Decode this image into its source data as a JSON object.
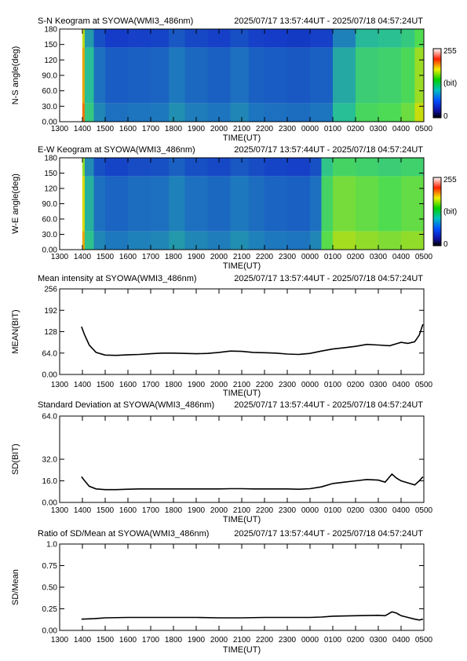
{
  "time_ticks": [
    "1300",
    "1400",
    "1500",
    "1600",
    "1700",
    "1800",
    "1900",
    "2000",
    "2100",
    "2200",
    "2300",
    "0000",
    "0100",
    "0200",
    "0300",
    "0400",
    "0500"
  ],
  "colors": {
    "line": "#000000",
    "keogram_base": "#2a6fb0",
    "keogram_bright": "#5ed0a0"
  },
  "chart_data": [
    {
      "type": "heatmap",
      "title": "S-N Keogram at SYOWA(WMI3_486nm)",
      "time_range": "2025/07/17 13:57:44UT - 2025/07/18 04:57:24UT",
      "xlabel": "TIME(UT)",
      "ylabel": "N-S angle(deg)",
      "yticks": [
        "0.00",
        "30.0",
        "60.0",
        "90.0",
        "120",
        "150",
        "180"
      ],
      "ylim": [
        0,
        180
      ],
      "colorbar": {
        "max": "255",
        "unit": "(bit)",
        "min": "0"
      },
      "column_intensity": [
        {
          "t": 13.96,
          "v": 0.9
        },
        {
          "t": 14.1,
          "v": 0.55
        },
        {
          "t": 14.5,
          "v": 0.38
        },
        {
          "t": 15.0,
          "v": 0.33
        },
        {
          "t": 16.0,
          "v": 0.34
        },
        {
          "t": 17.0,
          "v": 0.35
        },
        {
          "t": 17.8,
          "v": 0.4
        },
        {
          "t": 18.5,
          "v": 0.36
        },
        {
          "t": 19.5,
          "v": 0.34
        },
        {
          "t": 20.5,
          "v": 0.38
        },
        {
          "t": 21.3,
          "v": 0.34
        },
        {
          "t": 22.0,
          "v": 0.33
        },
        {
          "t": 23.0,
          "v": 0.32
        },
        {
          "t": 24.0,
          "v": 0.34
        },
        {
          "t": 25.0,
          "v": 0.5
        },
        {
          "t": 26.0,
          "v": 0.62
        },
        {
          "t": 27.0,
          "v": 0.64
        },
        {
          "t": 28.0,
          "v": 0.68
        },
        {
          "t": 28.6,
          "v": 0.78
        },
        {
          "t": 28.96,
          "v": 0.86
        }
      ]
    },
    {
      "type": "heatmap",
      "title": "E-W Keogram at SYOWA(WMI3_486nm)",
      "time_range": "2025/07/17 13:57:44UT - 2025/07/18 04:57:24UT",
      "xlabel": "TIME(UT)",
      "ylabel": "W-E angle(deg)",
      "yticks": [
        "0.00",
        "30.0",
        "60.0",
        "90.0",
        "120",
        "150",
        "180"
      ],
      "ylim": [
        0,
        180
      ],
      "colorbar": {
        "max": "255",
        "unit": "(bit)",
        "min": "0"
      },
      "column_intensity": [
        {
          "t": 13.96,
          "v": 0.85
        },
        {
          "t": 14.1,
          "v": 0.52
        },
        {
          "t": 14.5,
          "v": 0.38
        },
        {
          "t": 15.0,
          "v": 0.35
        },
        {
          "t": 16.0,
          "v": 0.37
        },
        {
          "t": 17.0,
          "v": 0.38
        },
        {
          "t": 17.8,
          "v": 0.42
        },
        {
          "t": 18.5,
          "v": 0.38
        },
        {
          "t": 19.5,
          "v": 0.36
        },
        {
          "t": 20.5,
          "v": 0.4
        },
        {
          "t": 21.3,
          "v": 0.37
        },
        {
          "t": 22.0,
          "v": 0.35
        },
        {
          "t": 23.0,
          "v": 0.34
        },
        {
          "t": 24.0,
          "v": 0.38
        },
        {
          "t": 24.5,
          "v": 0.66
        },
        {
          "t": 25.0,
          "v": 0.74
        },
        {
          "t": 26.0,
          "v": 0.72
        },
        {
          "t": 27.0,
          "v": 0.7
        },
        {
          "t": 28.0,
          "v": 0.72
        },
        {
          "t": 28.96,
          "v": 0.86
        }
      ]
    },
    {
      "type": "line",
      "title": "Mean intensity at SYOWA(WMI3_486nm)",
      "time_range": "2025/07/17 13:57:44UT - 2025/07/18 04:57:24UT",
      "xlabel": "TIME(UT)",
      "ylabel": "MEAN(BIT)",
      "yticks": [
        "0.00",
        "64.0",
        "128",
        "192",
        "256"
      ],
      "ylim": [
        0,
        256
      ],
      "series": [
        {
          "x": [
            13.96,
            14.1,
            14.3,
            14.6,
            15.0,
            15.5,
            16.0,
            16.5,
            17.0,
            17.5,
            18.0,
            18.5,
            19.0,
            19.5,
            20.0,
            20.5,
            21.0,
            21.5,
            22.0,
            22.5,
            23.0,
            23.5,
            24.0,
            24.5,
            25.0,
            25.5,
            26.0,
            26.5,
            27.0,
            27.5,
            28.0,
            28.3,
            28.6,
            28.8,
            28.96
          ],
          "y": [
            143,
            118,
            88,
            66,
            58,
            57,
            59,
            60,
            62,
            64,
            64,
            63,
            62,
            63,
            66,
            70,
            69,
            66,
            65,
            64,
            61,
            60,
            63,
            70,
            76,
            80,
            84,
            90,
            88,
            86,
            96,
            93,
            98,
            118,
            150
          ]
        }
      ]
    },
    {
      "type": "line",
      "title": "Standard Deviation at SYOWA(WMI3_486nm)",
      "time_range": "2025/07/17 13:57:44UT - 2025/07/18 04:57:24UT",
      "xlabel": "TIME(UT)",
      "ylabel": "SD(BIT)",
      "yticks": [
        "0.00",
        "16.0",
        "32.0",
        "64.0"
      ],
      "ylim": [
        0,
        64
      ],
      "series": [
        {
          "x": [
            13.96,
            14.1,
            14.3,
            14.6,
            15.0,
            15.5,
            16.0,
            16.5,
            17.0,
            17.5,
            18.0,
            18.5,
            19.0,
            19.5,
            20.0,
            20.5,
            21.0,
            21.5,
            22.0,
            22.5,
            23.0,
            23.5,
            24.0,
            24.5,
            25.0,
            25.5,
            26.0,
            26.5,
            27.0,
            27.3,
            27.6,
            27.8,
            28.0,
            28.3,
            28.6,
            28.8,
            28.96
          ],
          "y": [
            19,
            16,
            12,
            10,
            9.5,
            9.5,
            9.8,
            10,
            10,
            10,
            10,
            10,
            10,
            10,
            10,
            10.2,
            10.2,
            10,
            10,
            10,
            10,
            9.8,
            10.2,
            11.5,
            14,
            15,
            16,
            17,
            16.5,
            15,
            21,
            18,
            16,
            14.5,
            13,
            16,
            19
          ]
        }
      ]
    },
    {
      "type": "line",
      "title": "Ratio of SD/Mean at SYOWA(WMI3_486nm)",
      "time_range": "2025/07/17 13:57:44UT - 2025/07/18 04:57:24UT",
      "xlabel": "TIME(UT)",
      "ylabel": "SD/Mean",
      "yticks": [
        "0.00",
        "0.25",
        "0.50",
        "0.75",
        "1.0"
      ],
      "ylim": [
        0,
        1
      ],
      "series": [
        {
          "x": [
            13.96,
            14.5,
            15.0,
            16.0,
            17.0,
            18.0,
            19.0,
            20.0,
            21.0,
            22.0,
            23.0,
            24.0,
            24.5,
            25.0,
            26.0,
            27.0,
            27.3,
            27.6,
            27.8,
            28.0,
            28.3,
            28.6,
            28.8,
            28.96
          ],
          "y": [
            0.13,
            0.135,
            0.145,
            0.15,
            0.15,
            0.15,
            0.15,
            0.145,
            0.145,
            0.15,
            0.15,
            0.15,
            0.155,
            0.165,
            0.17,
            0.175,
            0.17,
            0.215,
            0.2,
            0.17,
            0.15,
            0.13,
            0.12,
            0.13
          ]
        }
      ]
    }
  ]
}
